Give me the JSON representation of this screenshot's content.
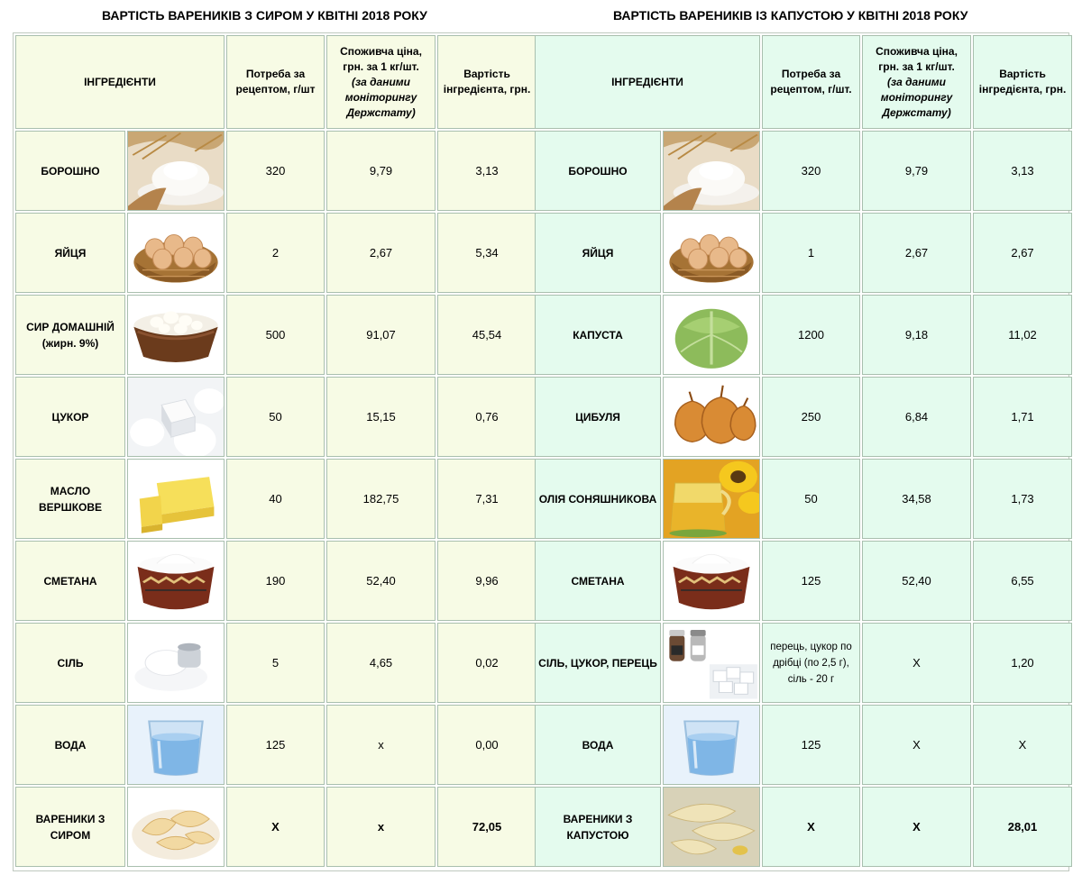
{
  "titles": {
    "left": "ВАРТІСТЬ ВАРЕНИКІВ З СИРОМ У КВІТНІ 2018 РОКУ",
    "right": "ВАРТІСТЬ ВАРЕНИКІВ ІЗ КАПУСТОЮ У КВІТНІ 2018 РОКУ"
  },
  "left_table": {
    "headers": {
      "ingredients": "ІНГРЕДІЄНТИ",
      "need_line1": "Потреба за",
      "need_line2": "рецептом, г/шт",
      "price_line1": "Споживча ціна,",
      "price_line2": "грн. за 1 кг/шт.",
      "price_note1": "(за даними",
      "price_note2": "моніторингу",
      "price_note3": "Держстату)",
      "cost_line1": "Вартість",
      "cost_line2": "інгредієнта, грн."
    },
    "rows": [
      {
        "name": "БОРОШНО",
        "name2": "",
        "need": "320",
        "price": "9,79",
        "cost": "3,13",
        "icon": "flour-image"
      },
      {
        "name": "ЯЙЦЯ",
        "name2": "",
        "need": "2",
        "price": "2,67",
        "cost": "5,34",
        "icon": "eggs-basket-image"
      },
      {
        "name": "СИР ДОМАШНІЙ",
        "name2": "(жирн. 9%)",
        "need": "500",
        "price": "91,07",
        "cost": "45,54",
        "icon": "cottage-cheese-image"
      },
      {
        "name": "ЦУКОР",
        "name2": "",
        "need": "50",
        "price": "15,15",
        "cost": "0,76",
        "icon": "sugar-image"
      },
      {
        "name": "МАСЛО",
        "name2": "ВЕРШКОВЕ",
        "need": "40",
        "price": "182,75",
        "cost": "7,31",
        "icon": "butter-image"
      },
      {
        "name": "СМЕТАНА",
        "name2": "",
        "need": "190",
        "price": "52,40",
        "cost": "9,96",
        "icon": "sour-cream-image"
      },
      {
        "name": "СІЛЬ",
        "name2": "",
        "need": "5",
        "price": "4,65",
        "cost": "0,02",
        "icon": "salt-image"
      },
      {
        "name": "ВОДА",
        "name2": "",
        "need": "125",
        "price": "х",
        "cost": "0,00",
        "icon": "water-glass-image"
      },
      {
        "name": "ВАРЕНИКИ З",
        "name2": "СИРОМ",
        "need": "X",
        "price": "x",
        "cost": "72,05",
        "icon": "cheese-dumplings-image"
      }
    ]
  },
  "right_table": {
    "headers": {
      "ingredients": "ІНГРЕДІЄНТИ",
      "need_line1": "Потреба за",
      "need_line2": "рецептом, г/шт.",
      "price_line1": "Споживча ціна,",
      "price_line2": "грн. за 1 кг/шт.",
      "price_note1": "(за даними",
      "price_note2": "моніторингу",
      "price_note3": "Держстату)",
      "cost_line1": "Вартість",
      "cost_line2": "інгредієнта, грн."
    },
    "rows": [
      {
        "name": "БОРОШНО",
        "name2": "",
        "need": "320",
        "price": "9,79",
        "cost": "3,13",
        "icon": "flour-image"
      },
      {
        "name": "ЯЙЦЯ",
        "name2": "",
        "need": "1",
        "price": "2,67",
        "cost": "2,67",
        "icon": "eggs-basket-image"
      },
      {
        "name": "КАПУСТА",
        "name2": "",
        "need": "1200",
        "price": "9,18",
        "cost": "11,02",
        "icon": "cabbage-image"
      },
      {
        "name": "ЦИБУЛЯ",
        "name2": "",
        "need": "250",
        "price": "6,84",
        "cost": "1,71",
        "icon": "onion-image"
      },
      {
        "name": "ОЛІЯ СОНЯШНИКОВА",
        "name2": "",
        "need": "50",
        "price": "34,58",
        "cost": "1,73",
        "icon": "sunflower-oil-image"
      },
      {
        "name": "СМЕТАНА",
        "name2": "",
        "need": "125",
        "price": "52,40",
        "cost": "6,55",
        "icon": "sour-cream-image"
      },
      {
        "name": "СІЛЬ, ЦУКОР, ПЕРЕЦЬ",
        "name2": "",
        "need": "перець, цукор по дрібці (по 2,5 г), сіль - 20 г",
        "price": "X",
        "cost": "1,20",
        "icon": "salt-sugar-pepper-image"
      },
      {
        "name": "ВОДА",
        "name2": "",
        "need": "125",
        "price": "X",
        "cost": "X",
        "icon": "water-glass-image"
      },
      {
        "name": "ВАРЕНИКИ З",
        "name2": "КАПУСТОЮ",
        "need": "X",
        "price": "X",
        "cost": "28,01",
        "icon": "cabbage-dumplings-image"
      }
    ]
  }
}
